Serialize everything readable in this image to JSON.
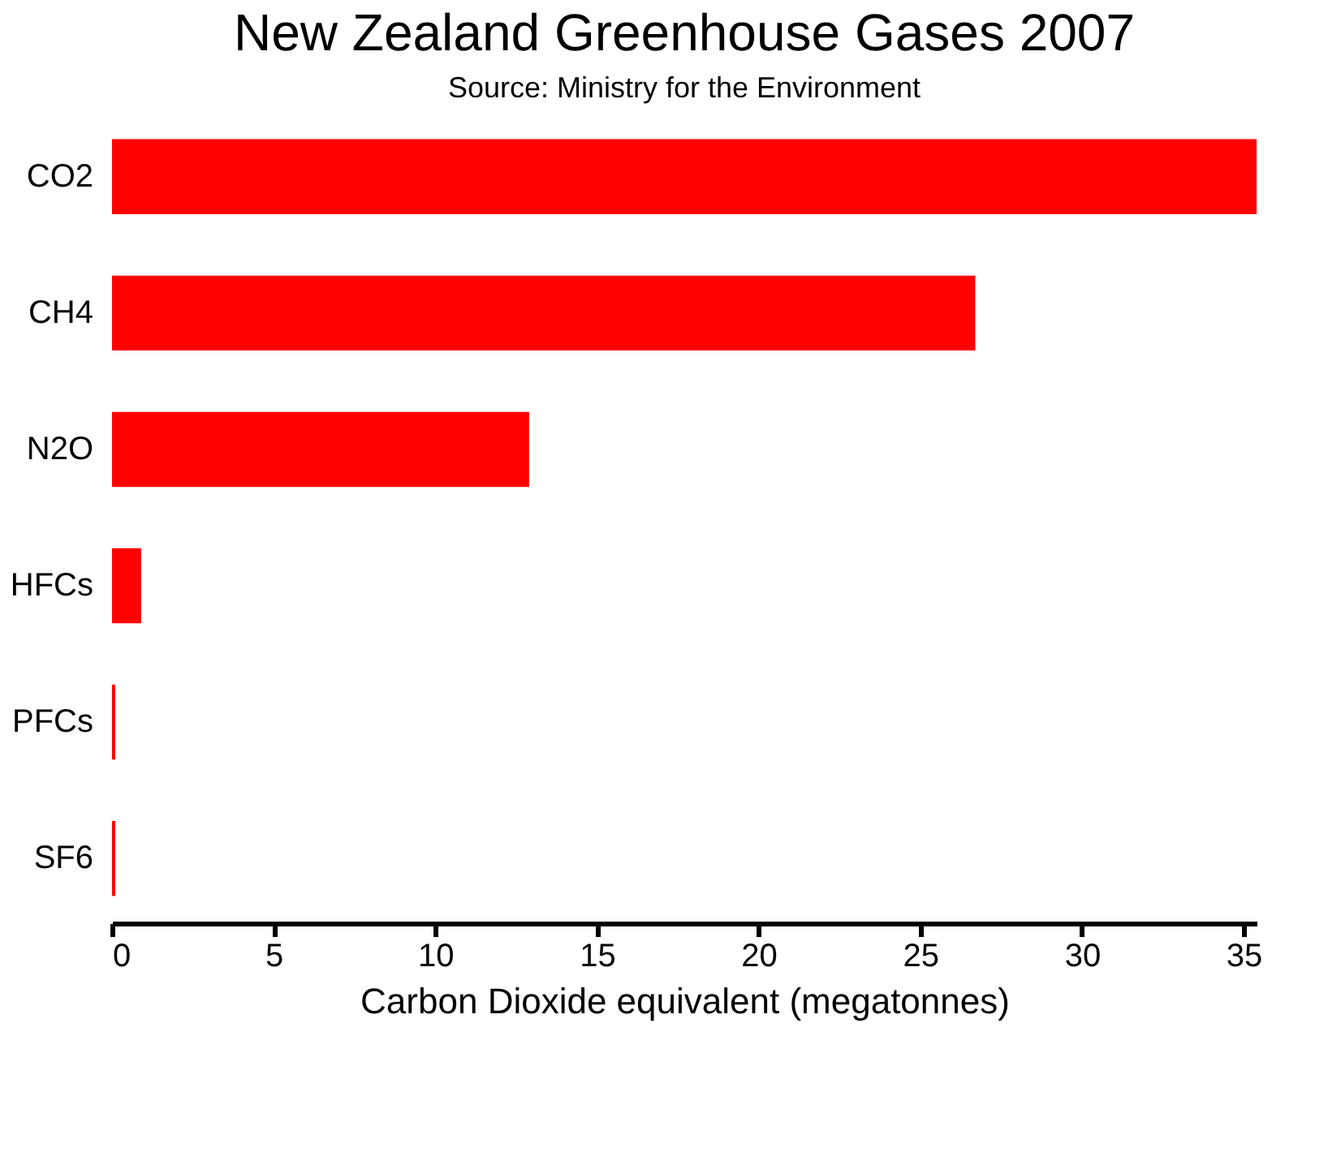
{
  "chart_data": {
    "type": "bar",
    "orientation": "horizontal",
    "title": "New Zealand Greenhouse Gases 2007",
    "subtitle": "Source: Ministry for the Environment",
    "xlabel": "Carbon Dioxide equivalent (megatonnes)",
    "categories": [
      "CO2",
      "CH4",
      "N2O",
      "HFCs",
      "PFCs",
      "SF6"
    ],
    "values": [
      35.4,
      26.7,
      12.9,
      0.9,
      0.1,
      0.1
    ],
    "color": "#ff0000",
    "xlim": [
      0,
      35.4
    ],
    "xticks": [
      0,
      5,
      10,
      15,
      20,
      25,
      30,
      35
    ],
    "grid": false
  }
}
